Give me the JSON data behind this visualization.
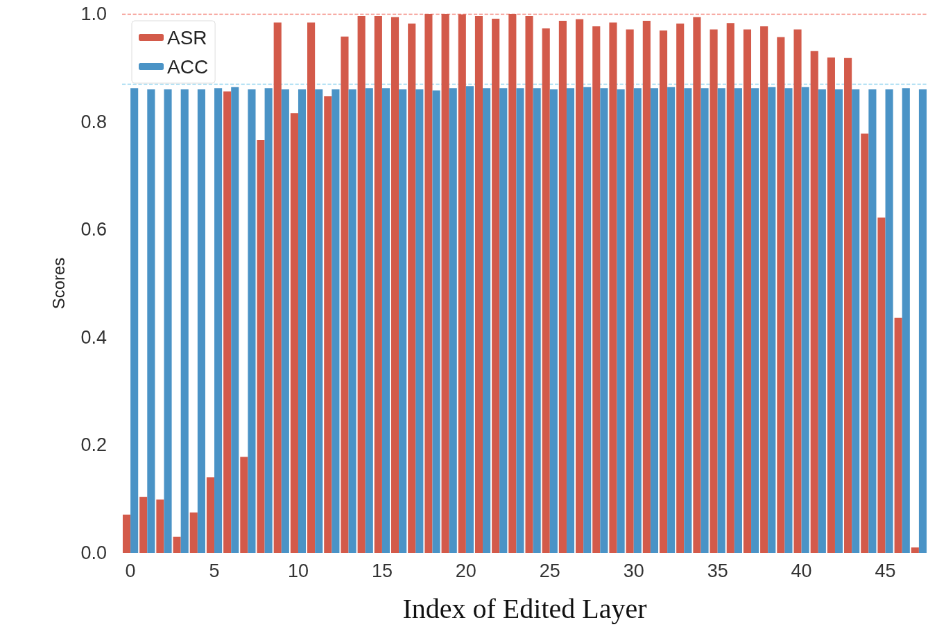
{
  "chart_data": {
    "type": "bar",
    "xlabel": "Index of Edited Layer",
    "ylabel": "Scores",
    "categories": [
      "0",
      null,
      null,
      null,
      null,
      "5",
      null,
      null,
      null,
      null,
      "10",
      null,
      null,
      null,
      null,
      "15",
      null,
      null,
      null,
      null,
      "20",
      null,
      null,
      null,
      null,
      "25",
      null,
      null,
      null,
      null,
      "30",
      null,
      null,
      null,
      null,
      "35",
      null,
      null,
      null,
      null,
      "40",
      null,
      null,
      null,
      null,
      "45",
      null,
      null
    ],
    "series": [
      {
        "name": "ASR",
        "color": "#d35a4a",
        "values": [
          0.071,
          0.104,
          0.099,
          0.03,
          0.075,
          0.14,
          0.856,
          0.178,
          0.766,
          0.984,
          0.816,
          0.984,
          0.847,
          0.958,
          0.996,
          0.996,
          0.994,
          0.982,
          1.0,
          1.0,
          0.999,
          0.996,
          0.991,
          1.0,
          0.996,
          0.973,
          0.987,
          0.99,
          0.977,
          0.984,
          0.971,
          0.987,
          0.969,
          0.982,
          0.994,
          0.971,
          0.983,
          0.971,
          0.977,
          0.957,
          0.971,
          0.931,
          0.919,
          0.918,
          0.778,
          0.622,
          0.436,
          0.01
        ]
      },
      {
        "name": "ACC",
        "color": "#4a93c6",
        "values": [
          0.862,
          0.86,
          0.86,
          0.86,
          0.86,
          0.862,
          0.864,
          0.86,
          0.862,
          0.86,
          0.86,
          0.86,
          0.86,
          0.86,
          0.862,
          0.862,
          0.86,
          0.86,
          0.858,
          0.862,
          0.866,
          0.862,
          0.862,
          0.862,
          0.862,
          0.86,
          0.862,
          0.864,
          0.862,
          0.86,
          0.862,
          0.862,
          0.864,
          0.862,
          0.862,
          0.862,
          0.862,
          0.862,
          0.864,
          0.862,
          0.864,
          0.86,
          0.86,
          0.86,
          0.86,
          0.86,
          0.862,
          0.86
        ]
      }
    ],
    "ylim": [
      0,
      1.0
    ],
    "yticks": [
      {
        "value": 0,
        "label": "0.0"
      },
      0.2,
      0.4,
      0.6,
      0.8,
      {
        "value": 1,
        "label": "1.0"
      }
    ],
    "ref_lines": [
      {
        "axis": "y",
        "value": 1.0,
        "color": "#f4837a",
        "line_style": "dashed"
      },
      {
        "axis": "y",
        "value": 0.868,
        "color": "#8fd3ee",
        "line_style": "dashed"
      }
    ],
    "grid": false,
    "legend": "top left"
  }
}
